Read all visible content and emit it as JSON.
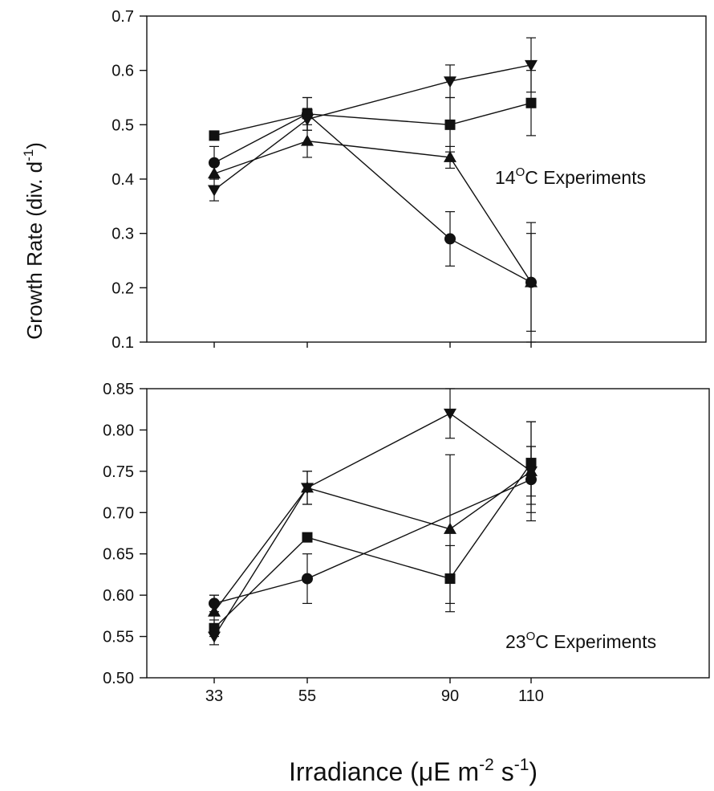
{
  "ylabel": "Growth Rate (div. d",
  "ylabel_sup": "-1",
  "ylabel_close": ")",
  "xlabel": "Irradiance (μE m",
  "xlabel_sup1": "-2",
  "xlabel_mid": " s",
  "xlabel_sup2": "-1",
  "xlabel_close": ")",
  "chart_data": [
    {
      "type": "line",
      "annotation": {
        "prefix": "14",
        "sup": "O",
        "suffix": "C  Experiments"
      },
      "x": [
        33,
        55,
        90,
        110
      ],
      "x_tick_labels": [],
      "ylim": [
        0.1,
        0.7
      ],
      "y_ticks": [
        "0.1",
        "0.2",
        "0.3",
        "0.4",
        "0.5",
        "0.6",
        "0.7"
      ],
      "grid": false,
      "series": [
        {
          "marker": "circle",
          "values": [
            0.43,
            0.52,
            0.29,
            0.21
          ],
          "errors": [
            0.03,
            0.03,
            0.05,
            0.09
          ]
        },
        {
          "marker": "square",
          "values": [
            0.48,
            0.52,
            0.5,
            0.54
          ],
          "errors": [
            0.0,
            0.03,
            0.05,
            0.06
          ]
        },
        {
          "marker": "triangle-up",
          "values": [
            0.41,
            0.47,
            0.44,
            0.21
          ],
          "errors": [
            0.0,
            0.03,
            0.02,
            0.11
          ]
        },
        {
          "marker": "triangle-down",
          "values": [
            0.38,
            0.51,
            0.58,
            0.61
          ],
          "errors": [
            0.02,
            0.02,
            0.03,
            0.05
          ]
        }
      ]
    },
    {
      "type": "line",
      "annotation": {
        "prefix": "23",
        "sup": "O",
        "suffix": "C Experiments"
      },
      "x": [
        33,
        55,
        90,
        110
      ],
      "x_tick_labels": [
        "33",
        "55",
        "90",
        "110"
      ],
      "ylim": [
        0.5,
        0.85
      ],
      "y_ticks": [
        "0.50",
        "0.55",
        "0.60",
        "0.65",
        "0.70",
        "0.75",
        "0.80",
        "0.85"
      ],
      "grid": false,
      "series": [
        {
          "marker": "circle",
          "values": [
            0.59,
            0.62,
            null,
            0.74
          ],
          "errors": [
            0.01,
            0.03,
            0,
            0.04
          ]
        },
        {
          "marker": "square",
          "values": [
            0.56,
            0.67,
            0.62,
            0.76
          ],
          "errors": [
            0.01,
            0.0,
            0.04,
            0.05
          ]
        },
        {
          "marker": "triangle-up",
          "values": [
            0.58,
            0.73,
            0.68,
            0.75
          ],
          "errors": [
            0.02,
            0.02,
            0.09,
            0.03
          ]
        },
        {
          "marker": "triangle-down",
          "values": [
            0.55,
            0.73,
            0.82,
            0.75
          ],
          "errors": [
            0.01,
            0.02,
            0.03,
            0.06
          ]
        }
      ]
    }
  ]
}
